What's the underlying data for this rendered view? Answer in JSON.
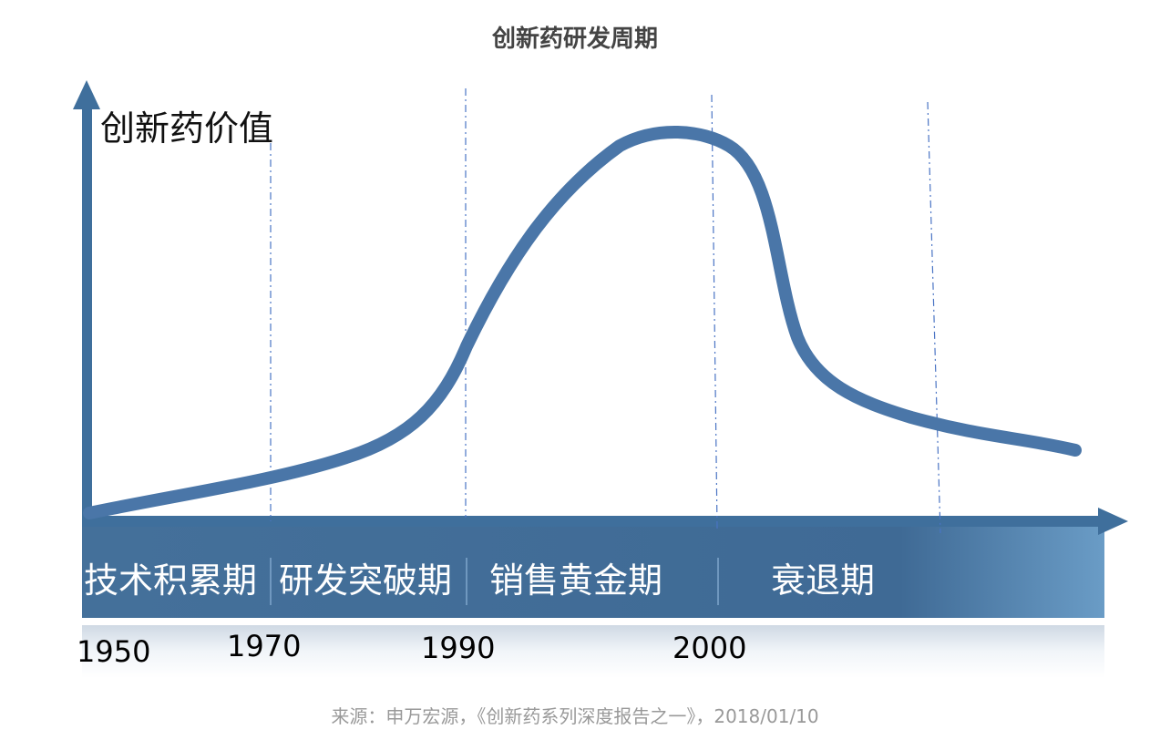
{
  "title": "创新药研发周期",
  "y_axis_label": "创新药价值",
  "phases": [
    {
      "label": "技术积累期"
    },
    {
      "label": "研发突破期"
    },
    {
      "label": "销售黄金期"
    },
    {
      "label": "衰退期"
    }
  ],
  "years": [
    "1950",
    "1970",
    "1990",
    "2000"
  ],
  "source": "来源：申万宏源，《创新药系列深度报告之一》，2018/01/10",
  "colors": {
    "curve": "#4a76a8",
    "axis": "#3f6f9c",
    "band": "#446e96",
    "divider": "#4a74c4"
  }
}
